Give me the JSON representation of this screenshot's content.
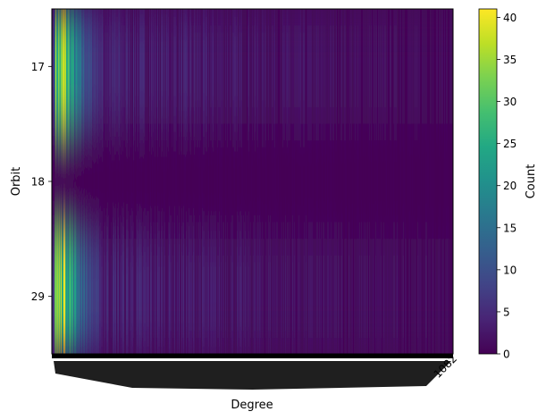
{
  "chart_data": {
    "type": "heatmap",
    "title": "",
    "xlabel": "Degree",
    "ylabel": "Orbit",
    "y_categories": [
      "17",
      "18",
      "29"
    ],
    "x_visible_tick_label": "1082",
    "colorbar": {
      "label": "Count",
      "range": [
        0,
        41
      ],
      "ticks": [
        0,
        5,
        10,
        15,
        20,
        25,
        30,
        35,
        40
      ],
      "colormap": "viridis"
    },
    "rows": [
      {
        "orbit": "17",
        "profile_description": "bright (~30-38) in the lowest degree bins, fading to ~2-5 by mid-range and near 0 at high degree",
        "peak": 38
      },
      {
        "orbit": "18",
        "profile_description": "near 0 across almost all degrees",
        "peak": 1
      },
      {
        "orbit": "29",
        "profile_description": "highest (~41) in the lowest degree bins, decaying to ~1-3 mid-range and 0 at high degree",
        "peak": 41
      }
    ]
  }
}
